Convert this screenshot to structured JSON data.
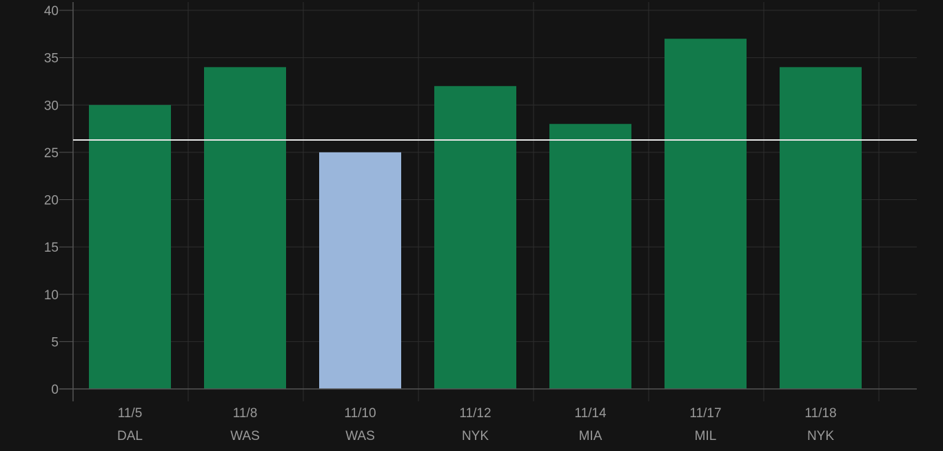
{
  "chart_data": {
    "type": "bar",
    "categories": [
      {
        "date": "11/5",
        "team": "DAL"
      },
      {
        "date": "11/8",
        "team": "WAS"
      },
      {
        "date": "11/10",
        "team": "WAS"
      },
      {
        "date": "11/12",
        "team": "NYK"
      },
      {
        "date": "11/14",
        "team": "MIA"
      },
      {
        "date": "11/17",
        "team": "MIL"
      },
      {
        "date": "11/18",
        "team": "NYK"
      }
    ],
    "values": [
      30,
      34,
      25,
      32,
      28,
      37,
      34
    ],
    "bar_colors": [
      "#127a4a",
      "#127a4a",
      "#9ab6db",
      "#127a4a",
      "#127a4a",
      "#127a4a",
      "#127a4a"
    ],
    "reference_line": 26.3,
    "reference_line_color": "#e8e8e8",
    "ylim": [
      0,
      40
    ],
    "yticks": [
      0,
      5,
      10,
      15,
      20,
      25,
      30,
      35,
      40
    ],
    "grid": true,
    "title": "",
    "xlabel": "",
    "ylabel": ""
  },
  "colors": {
    "background": "#141414",
    "grid": "#2e2e2e",
    "axis": "#555555",
    "tick_text": "#9a9a9a"
  }
}
